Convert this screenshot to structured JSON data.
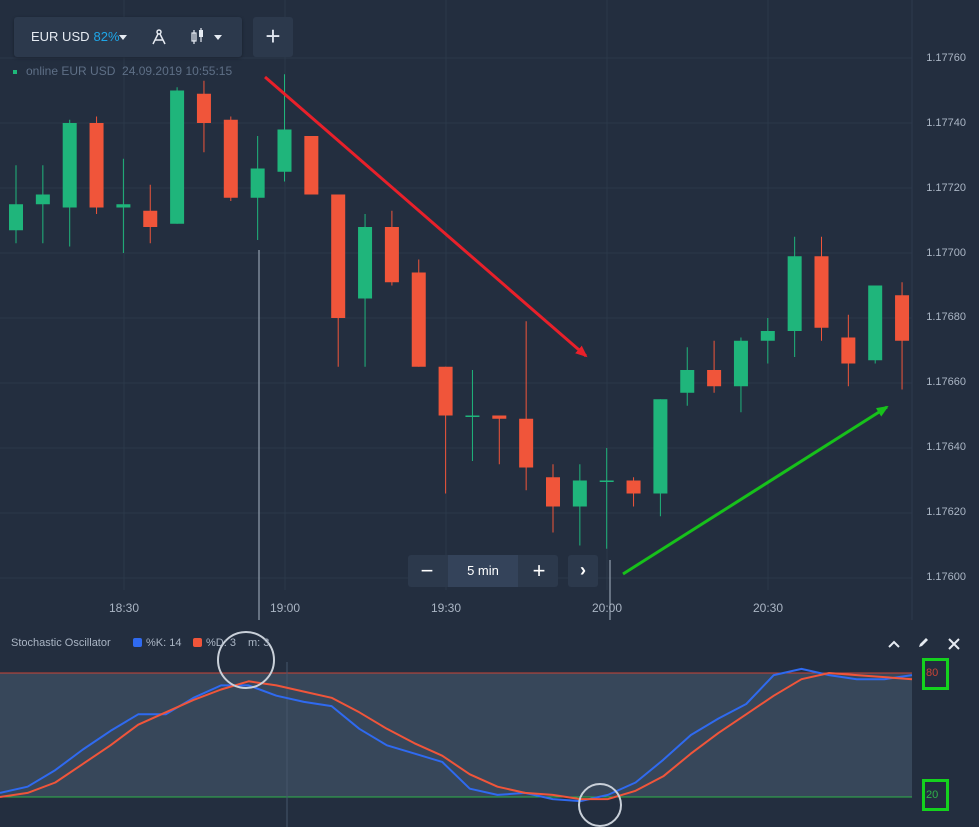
{
  "toolbar": {
    "pair": "EUR USD",
    "payout": "82%",
    "add_label": "+"
  },
  "status": {
    "text": "online EUR USD",
    "datetime": "24.09.2019 10:55:15"
  },
  "price_axis": [
    "1.17760",
    "1.17740",
    "1.17720",
    "1.17700",
    "1.17680",
    "1.17660",
    "1.17640",
    "1.17620",
    "1.17600"
  ],
  "time_axis": [
    "18:30",
    "19:00",
    "19:30",
    "20:00",
    "20:30"
  ],
  "zoom": {
    "minus": "−",
    "interval": "5 min",
    "plus": "+",
    "next": "›"
  },
  "oscillator": {
    "title": "Stochastic Oscillator",
    "k_label": "%K: 14",
    "d_label": "%D: 3",
    "m_label": "m: 3",
    "upper_level": "80",
    "lower_level": "20"
  },
  "colors": {
    "bull": "#1fb57b",
    "bear": "#f0553a",
    "k_line": "#2f6af0",
    "d_line": "#f0553a",
    "up_arrow": "#17c11b",
    "down_arrow": "#e8202a",
    "highlight": "#14d21e"
  },
  "chart_data": {
    "type": "candlestick",
    "time_labels": [
      "18:30",
      "19:00",
      "19:30",
      "20:00",
      "20:30"
    ],
    "ylim": [
      1.176,
      1.1776
    ],
    "candles": [
      {
        "o": 1.17707,
        "h": 1.17727,
        "l": 1.17703,
        "c": 1.17715
      },
      {
        "o": 1.17715,
        "h": 1.17727,
        "l": 1.17703,
        "c": 1.17718
      },
      {
        "o": 1.17714,
        "h": 1.17741,
        "l": 1.17702,
        "c": 1.1774
      },
      {
        "o": 1.1774,
        "h": 1.17742,
        "l": 1.17712,
        "c": 1.17714
      },
      {
        "o": 1.17714,
        "h": 1.17729,
        "l": 1.177,
        "c": 1.17715
      },
      {
        "o": 1.17713,
        "h": 1.17721,
        "l": 1.17703,
        "c": 1.17708
      },
      {
        "o": 1.17709,
        "h": 1.17751,
        "l": 1.17709,
        "c": 1.1775
      },
      {
        "o": 1.17749,
        "h": 1.17753,
        "l": 1.17731,
        "c": 1.1774
      },
      {
        "o": 1.17741,
        "h": 1.17742,
        "l": 1.17716,
        "c": 1.17717
      },
      {
        "o": 1.17717,
        "h": 1.17736,
        "l": 1.17704,
        "c": 1.17726
      },
      {
        "o": 1.17725,
        "h": 1.17755,
        "l": 1.17722,
        "c": 1.17738
      },
      {
        "o": 1.17736,
        "h": 1.17736,
        "l": 1.17718,
        "c": 1.17718
      },
      {
        "o": 1.17718,
        "h": 1.17718,
        "l": 1.17665,
        "c": 1.1768
      },
      {
        "o": 1.17686,
        "h": 1.17712,
        "l": 1.17665,
        "c": 1.17708
      },
      {
        "o": 1.17708,
        "h": 1.17713,
        "l": 1.1769,
        "c": 1.17691
      },
      {
        "o": 1.17694,
        "h": 1.17698,
        "l": 1.17665,
        "c": 1.17665
      },
      {
        "o": 1.17665,
        "h": 1.17665,
        "l": 1.17626,
        "c": 1.1765
      },
      {
        "o": 1.1765,
        "h": 1.17664,
        "l": 1.17636,
        "c": 1.1765
      },
      {
        "o": 1.1765,
        "h": 1.1765,
        "l": 1.17635,
        "c": 1.17649
      },
      {
        "o": 1.17649,
        "h": 1.17679,
        "l": 1.17627,
        "c": 1.17634
      },
      {
        "o": 1.17631,
        "h": 1.17635,
        "l": 1.17614,
        "c": 1.17622
      },
      {
        "o": 1.17622,
        "h": 1.17635,
        "l": 1.1761,
        "c": 1.1763
      },
      {
        "o": 1.1763,
        "h": 1.1764,
        "l": 1.17609,
        "c": 1.1763
      },
      {
        "o": 1.1763,
        "h": 1.17631,
        "l": 1.17622,
        "c": 1.17626
      },
      {
        "o": 1.17626,
        "h": 1.17655,
        "l": 1.17619,
        "c": 1.17655
      },
      {
        "o": 1.17657,
        "h": 1.17671,
        "l": 1.17653,
        "c": 1.17664
      },
      {
        "o": 1.17664,
        "h": 1.17673,
        "l": 1.17657,
        "c": 1.17659
      },
      {
        "o": 1.17659,
        "h": 1.17674,
        "l": 1.17651,
        "c": 1.17673
      },
      {
        "o": 1.17673,
        "h": 1.1768,
        "l": 1.17666,
        "c": 1.17676
      },
      {
        "o": 1.17676,
        "h": 1.17705,
        "l": 1.17668,
        "c": 1.17699
      },
      {
        "o": 1.17699,
        "h": 1.17705,
        "l": 1.17673,
        "c": 1.17677
      },
      {
        "o": 1.17674,
        "h": 1.17681,
        "l": 1.17659,
        "c": 1.17666
      },
      {
        "o": 1.17667,
        "h": 1.17689,
        "l": 1.17666,
        "c": 1.1769
      },
      {
        "o": 1.17687,
        "h": 1.17691,
        "l": 1.17658,
        "c": 1.17673
      }
    ],
    "oscillator": {
      "ylim": [
        0,
        100
      ],
      "levels": [
        80,
        20
      ],
      "k": [
        22,
        25,
        33,
        43,
        52,
        60,
        60,
        68,
        74,
        74,
        69,
        66,
        64,
        53,
        45,
        41,
        37,
        24,
        21,
        22,
        19,
        18,
        21,
        27,
        38,
        50,
        58,
        65,
        79,
        82,
        79,
        77,
        77,
        79
      ],
      "d": [
        20,
        22,
        27,
        36,
        45,
        55,
        61,
        67,
        72,
        76,
        74,
        71,
        68,
        61,
        53,
        46,
        40,
        31,
        25,
        22,
        21,
        19,
        19,
        23,
        30,
        41,
        51,
        60,
        69,
        77,
        80,
        79,
        78,
        77
      ]
    }
  }
}
